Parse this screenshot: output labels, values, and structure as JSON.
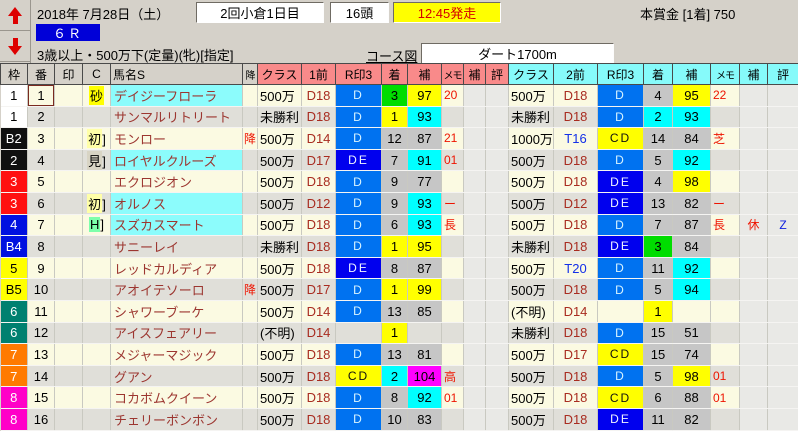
{
  "toolbar": {
    "date": "2018年 7月28日（土）",
    "meeting": "2回小倉1日目",
    "heads": "16頭",
    "start": "12:45発走",
    "prize": "本賞金 [1着] 750",
    "race_no": "６Ｒ",
    "condition": "3歳以上・500万下(定量)(牝)[指定]",
    "course_link": "コース図",
    "course": "ダート1700m"
  },
  "palette": {
    "waku": {
      "1": [
        "#ffffff",
        "#000000"
      ],
      "2": [
        "#101010",
        "#ffffff"
      ],
      "3": [
        "#ff1010",
        "#ffffff"
      ],
      "4": [
        "#0010e0",
        "#ffffff"
      ],
      "5": [
        "#ffff00",
        "#000000"
      ],
      "6": [
        "#008070",
        "#ffffff"
      ],
      "7": [
        "#ff7a00",
        "#ffffff"
      ],
      "8": [
        "#ff00c8",
        "#ffffff"
      ]
    },
    "mk": {
      "D": [
        "#0072f0",
        "#d8f4ff"
      ],
      "DE": [
        "#0000ee",
        "#f0f4ff"
      ],
      "CD": [
        "#ffff00",
        "#101010"
      ]
    },
    "fin": {
      "1": "#ffff00",
      "2": "#00ffff",
      "3": "#00dd00",
      "other": "#c6c6c6"
    },
    "ho": {
      "hi": "#ff00ff",
      "yel": "#ffff00",
      "cyn": "#00ffff",
      "oth": "#c6c6c6"
    },
    "c": {
      "砂": "#ffff00",
      "初": "#ffffa8",
      "見": "#d8d4c4",
      "H": "#7dffab"
    }
  },
  "table": {
    "headers": [
      "枠",
      "番",
      "印",
      "C",
      "馬名S",
      "降",
      "クラス",
      "1前",
      "R印3",
      "着",
      "補",
      "メモ",
      "補",
      "評",
      "クラス",
      "2前",
      "R印3",
      "着",
      "補",
      "メモ",
      "補",
      "評"
    ],
    "rows": [
      {
        "waku": "1",
        "wc": "1",
        "num": "1",
        "cursor": true,
        "mark": "",
        "c": "砂",
        "cb": false,
        "name": "デイジーフローラ",
        "hl": true,
        "demote": "",
        "p1": {
          "cls": "500万",
          "prev": "D18",
          "turf": false,
          "mk": "D",
          "fin": "3",
          "ho": "97",
          "memo": "20",
          "ho2": "",
          "ev": ""
        },
        "p2": {
          "cls": "500万",
          "prev": "D18",
          "turf": false,
          "mk": "D",
          "fin": "4",
          "ho": "95",
          "memo": "22",
          "ho2": "",
          "ev": ""
        }
      },
      {
        "waku": "1",
        "wc": "1",
        "num": "2",
        "cursor": false,
        "mark": "",
        "c": "",
        "cb": false,
        "name": "サンマルリトリート",
        "hl": false,
        "demote": "",
        "p1": {
          "cls": "未勝利",
          "prev": "D18",
          "turf": false,
          "mk": "D",
          "fin": "1",
          "ho": "93",
          "memo": "",
          "ho2": "",
          "ev": ""
        },
        "p2": {
          "cls": "未勝利",
          "prev": "D18",
          "turf": false,
          "mk": "D",
          "fin": "2",
          "ho": "93",
          "memo": "",
          "ho2": "",
          "ev": ""
        }
      },
      {
        "waku": "B2",
        "wc": "2",
        "num": "3",
        "cursor": false,
        "mark": "",
        "c": "初",
        "cb": true,
        "name": "モンロー",
        "hl": false,
        "demote": "降",
        "p1": {
          "cls": "500万",
          "prev": "D14",
          "turf": false,
          "mk": "D",
          "fin": "12",
          "ho": "87",
          "memo": "21",
          "ho2": "",
          "ev": ""
        },
        "p2": {
          "cls": "1000万",
          "prev": "T16",
          "turf": true,
          "mk": "CD",
          "fin": "14",
          "ho": "84",
          "memo": "芝",
          "ho2": "",
          "ev": ""
        }
      },
      {
        "waku": "2",
        "wc": "2",
        "num": "4",
        "cursor": false,
        "mark": "",
        "c": "見",
        "cb": true,
        "name": "ロイヤルクルーズ",
        "hl": true,
        "demote": "",
        "p1": {
          "cls": "500万",
          "prev": "D17",
          "turf": false,
          "mk": "DE",
          "fin": "7",
          "ho": "91",
          "memo": "01",
          "ho2": "",
          "ev": ""
        },
        "p2": {
          "cls": "500万",
          "prev": "D18",
          "turf": false,
          "mk": "D",
          "fin": "5",
          "ho": "92",
          "memo": "",
          "ho2": "",
          "ev": ""
        }
      },
      {
        "waku": "3",
        "wc": "3",
        "num": "5",
        "cursor": false,
        "mark": "",
        "c": "",
        "cb": false,
        "name": "エクロジオン",
        "hl": false,
        "demote": "",
        "p1": {
          "cls": "500万",
          "prev": "D18",
          "turf": false,
          "mk": "D",
          "fin": "9",
          "ho": "77",
          "memo": "",
          "ho2": "",
          "ev": ""
        },
        "p2": {
          "cls": "500万",
          "prev": "D18",
          "turf": false,
          "mk": "DE",
          "fin": "4",
          "ho": "98",
          "memo": "",
          "ho2": "",
          "ev": ""
        }
      },
      {
        "waku": "3",
        "wc": "3",
        "num": "6",
        "cursor": false,
        "mark": "",
        "c": "初",
        "cb": true,
        "name": "オルノス",
        "hl": true,
        "demote": "",
        "p1": {
          "cls": "500万",
          "prev": "D12",
          "turf": false,
          "mk": "D",
          "fin": "9",
          "ho": "93",
          "memo": "ー",
          "ho2": "",
          "ev": ""
        },
        "p2": {
          "cls": "500万",
          "prev": "D12",
          "turf": false,
          "mk": "DE",
          "fin": "13",
          "ho": "82",
          "memo": "ー",
          "ho2": "",
          "ev": ""
        }
      },
      {
        "waku": "4",
        "wc": "4",
        "num": "7",
        "cursor": false,
        "mark": "",
        "c": "H",
        "cb": true,
        "name": "スズカスマート",
        "hl": true,
        "demote": "",
        "p1": {
          "cls": "500万",
          "prev": "D18",
          "turf": false,
          "mk": "D",
          "fin": "6",
          "ho": "93",
          "memo": "長",
          "ho2": "",
          "ev": ""
        },
        "p2": {
          "cls": "500万",
          "prev": "D18",
          "turf": false,
          "mk": "D",
          "fin": "7",
          "ho": "87",
          "memo": "長",
          "ho2": "休",
          "ev": "Z"
        }
      },
      {
        "waku": "B4",
        "wc": "4",
        "num": "8",
        "cursor": false,
        "mark": "",
        "c": "",
        "cb": false,
        "name": "サニーレイ",
        "hl": false,
        "demote": "",
        "p1": {
          "cls": "未勝利",
          "prev": "D18",
          "turf": false,
          "mk": "D",
          "fin": "1",
          "ho": "95",
          "memo": "",
          "ho2": "",
          "ev": ""
        },
        "p2": {
          "cls": "未勝利",
          "prev": "D18",
          "turf": false,
          "mk": "DE",
          "fin": "3",
          "ho": "84",
          "memo": "",
          "ho2": "",
          "ev": ""
        }
      },
      {
        "waku": "5",
        "wc": "5",
        "num": "9",
        "cursor": false,
        "mark": "",
        "c": "",
        "cb": false,
        "name": "レッドカルディア",
        "hl": false,
        "demote": "",
        "p1": {
          "cls": "500万",
          "prev": "D18",
          "turf": false,
          "mk": "DE",
          "fin": "8",
          "ho": "87",
          "memo": "",
          "ho2": "",
          "ev": ""
        },
        "p2": {
          "cls": "500万",
          "prev": "T20",
          "turf": true,
          "mk": "D",
          "fin": "11",
          "ho": "92",
          "memo": "",
          "ho2": "",
          "ev": ""
        }
      },
      {
        "waku": "B5",
        "wc": "5",
        "num": "10",
        "cursor": false,
        "mark": "",
        "c": "",
        "cb": false,
        "name": "アオイテソーロ",
        "hl": false,
        "demote": "降",
        "p1": {
          "cls": "500万",
          "prev": "D17",
          "turf": false,
          "mk": "D",
          "fin": "1",
          "ho": "99",
          "memo": "",
          "ho2": "",
          "ev": ""
        },
        "p2": {
          "cls": "500万",
          "prev": "D18",
          "turf": false,
          "mk": "D",
          "fin": "5",
          "ho": "94",
          "memo": "",
          "ho2": "",
          "ev": ""
        }
      },
      {
        "waku": "6",
        "wc": "6",
        "num": "11",
        "cursor": false,
        "mark": "",
        "c": "",
        "cb": false,
        "name": "シャワーブーケ",
        "hl": false,
        "demote": "",
        "p1": {
          "cls": "500万",
          "prev": "D14",
          "turf": false,
          "mk": "D",
          "fin": "13",
          "ho": "85",
          "memo": "",
          "ho2": "",
          "ev": ""
        },
        "p2": {
          "cls": "(不明)",
          "prev": "D14",
          "turf": false,
          "mk": "",
          "fin": "1",
          "ho": "",
          "memo": "",
          "ho2": "",
          "ev": ""
        }
      },
      {
        "waku": "6",
        "wc": "6",
        "num": "12",
        "cursor": false,
        "mark": "",
        "c": "",
        "cb": false,
        "name": "アイスフェアリー",
        "hl": false,
        "demote": "",
        "p1": {
          "cls": "(不明)",
          "prev": "D14",
          "turf": false,
          "mk": "",
          "fin": "1",
          "ho": "",
          "memo": "",
          "ho2": "",
          "ev": ""
        },
        "p2": {
          "cls": "未勝利",
          "prev": "D18",
          "turf": false,
          "mk": "D",
          "fin": "15",
          "ho": "51",
          "memo": "",
          "ho2": "",
          "ev": ""
        }
      },
      {
        "waku": "7",
        "wc": "7",
        "num": "13",
        "cursor": false,
        "mark": "",
        "c": "",
        "cb": false,
        "name": "メジャーマジック",
        "hl": false,
        "demote": "",
        "p1": {
          "cls": "500万",
          "prev": "D18",
          "turf": false,
          "mk": "D",
          "fin": "13",
          "ho": "81",
          "memo": "",
          "ho2": "",
          "ev": ""
        },
        "p2": {
          "cls": "500万",
          "prev": "D17",
          "turf": false,
          "mk": "CD",
          "fin": "15",
          "ho": "74",
          "memo": "",
          "ho2": "",
          "ev": ""
        }
      },
      {
        "waku": "7",
        "wc": "7",
        "num": "14",
        "cursor": false,
        "mark": "",
        "c": "",
        "cb": false,
        "name": "グアン",
        "hl": false,
        "demote": "",
        "p1": {
          "cls": "500万",
          "prev": "D18",
          "turf": false,
          "mk": "CD",
          "fin": "2",
          "ho": "104",
          "memo": "高",
          "ho2": "",
          "ev": ""
        },
        "p2": {
          "cls": "500万",
          "prev": "D18",
          "turf": false,
          "mk": "D",
          "fin": "5",
          "ho": "98",
          "memo": "01",
          "ho2": "",
          "ev": ""
        }
      },
      {
        "waku": "8",
        "wc": "8",
        "num": "15",
        "cursor": false,
        "mark": "",
        "c": "",
        "cb": false,
        "name": "コカボムクイーン",
        "hl": false,
        "demote": "",
        "p1": {
          "cls": "500万",
          "prev": "D18",
          "turf": false,
          "mk": "D",
          "fin": "8",
          "ho": "92",
          "memo": "01",
          "ho2": "",
          "ev": ""
        },
        "p2": {
          "cls": "500万",
          "prev": "D18",
          "turf": false,
          "mk": "CD",
          "fin": "6",
          "ho": "88",
          "memo": "01",
          "ho2": "",
          "ev": ""
        }
      },
      {
        "waku": "8",
        "wc": "8",
        "num": "16",
        "cursor": false,
        "mark": "",
        "c": "",
        "cb": false,
        "name": "チェリーボンボン",
        "hl": false,
        "demote": "",
        "p1": {
          "cls": "500万",
          "prev": "D18",
          "turf": false,
          "mk": "D",
          "fin": "10",
          "ho": "83",
          "memo": "",
          "ho2": "",
          "ev": ""
        },
        "p2": {
          "cls": "500万",
          "prev": "D18",
          "turf": false,
          "mk": "DE",
          "fin": "11",
          "ho": "82",
          "memo": "",
          "ho2": "",
          "ev": ""
        }
      }
    ]
  }
}
